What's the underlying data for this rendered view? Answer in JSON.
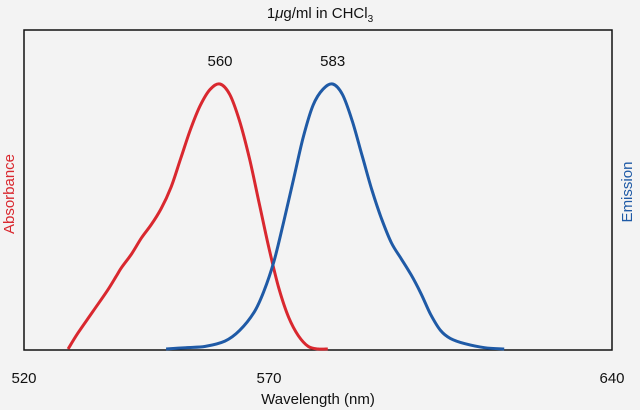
{
  "chart_data": {
    "type": "line",
    "title_prefix": "1",
    "title_mu": "μ",
    "title_main": "g/ml in CHCl",
    "title_sub": "3",
    "xlabel": "Wavelength (nm)",
    "ylabel_left": "Absorbance",
    "ylabel_right": "Emission",
    "xlim": [
      520,
      640
    ],
    "ylim": [
      0,
      1
    ],
    "xticks": [
      520,
      570,
      640
    ],
    "grid": false,
    "series": [
      {
        "name": "",
        "axis": "left",
        "color": "#d9282f",
        "peak_label": "560",
        "peak_x": 560,
        "x": [
          529,
          531,
          534,
          537,
          539,
          540,
          542,
          544,
          546,
          548,
          550,
          552,
          554,
          556,
          558,
          560,
          562,
          564,
          566,
          568,
          570,
          572,
          574,
          576,
          578,
          580,
          582
        ],
        "y": [
          0.0,
          0.06,
          0.14,
          0.22,
          0.28,
          0.31,
          0.36,
          0.42,
          0.47,
          0.53,
          0.61,
          0.72,
          0.83,
          0.92,
          0.98,
          1.0,
          0.96,
          0.86,
          0.72,
          0.55,
          0.38,
          0.23,
          0.12,
          0.05,
          0.01,
          0.0,
          0.0
        ]
      },
      {
        "name": "",
        "axis": "right",
        "color": "#1f5aa6",
        "peak_label": "583",
        "peak_x": 583,
        "x": [
          549,
          553,
          557,
          561,
          564,
          567,
          569,
          571,
          573,
          575,
          577,
          579,
          581,
          583,
          585,
          587,
          589,
          591,
          593,
          595,
          597,
          599,
          601,
          603,
          605,
          607,
          610,
          614,
          618
        ],
        "y": [
          0.0,
          0.005,
          0.01,
          0.03,
          0.07,
          0.14,
          0.22,
          0.33,
          0.48,
          0.64,
          0.8,
          0.92,
          0.98,
          1.0,
          0.96,
          0.86,
          0.73,
          0.6,
          0.49,
          0.4,
          0.34,
          0.28,
          0.21,
          0.13,
          0.07,
          0.04,
          0.02,
          0.005,
          0.0
        ]
      }
    ]
  }
}
